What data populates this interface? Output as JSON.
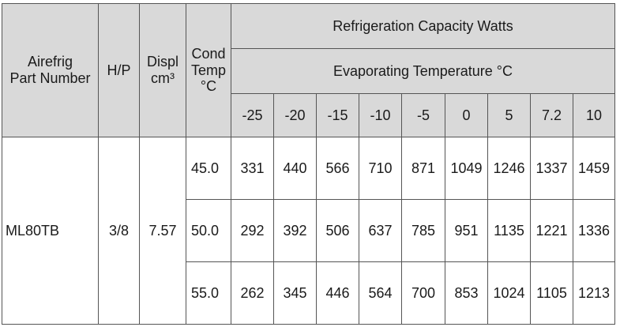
{
  "header": {
    "part_line1": "Airefrig",
    "part_line2": "Part Number",
    "hp": "H/P",
    "displ_line1": "Displ",
    "displ_line2": "cm³",
    "cond_line1": "Cond",
    "cond_line2": "Temp",
    "cond_line3": "°C",
    "capacity_title": "Refrigeration Capacity Watts",
    "evap_title": "Evaporating Temperature °C",
    "evap_temps": [
      "-25",
      "-20",
      "-15",
      "-10",
      "-5",
      "0",
      "5",
      "7.2",
      "10"
    ]
  },
  "row": {
    "part_number": "ML80TB",
    "hp": "3/8",
    "displacement": "7.57"
  },
  "capacity_rows": [
    {
      "cond_temp": "45.0",
      "values": [
        "331",
        "440",
        "566",
        "710",
        "871",
        "1049",
        "1246",
        "1337",
        "1459"
      ]
    },
    {
      "cond_temp": "50.0",
      "values": [
        "292",
        "392",
        "506",
        "637",
        "785",
        "951",
        "1135",
        "1221",
        "1336"
      ]
    },
    {
      "cond_temp": "55.0",
      "values": [
        "262",
        "345",
        "446",
        "564",
        "700",
        "853",
        "1024",
        "1105",
        "1213"
      ]
    }
  ]
}
